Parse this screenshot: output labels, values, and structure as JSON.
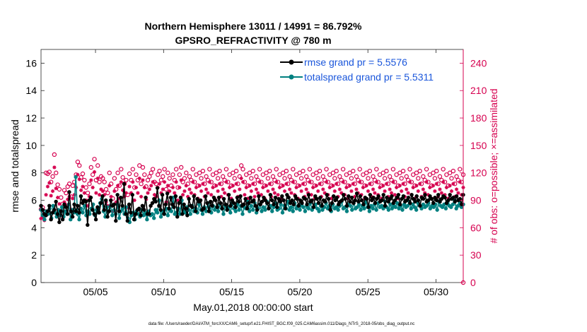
{
  "chart_data": {
    "type": "line",
    "title": "Northern Hemisphere 13011 / 14991 = 86.792%",
    "subtitle": "GPSRO_REFRACTIVITY @ 780 m",
    "xlabel": "May.01,2018 00:00:00 start",
    "ylabel_left": "rmse and totalspread",
    "ylabel_right": "# of obs: o=possible; ×=assimilated",
    "footer": "data file: /Users/raeder/DAI/ATM_forcXX/CAM6_setup/f.e21.FHIST_BGC.f09_025.CAM6assim.011/Diags_NTrS_2018-05/obs_diag_output.nc",
    "xlim": [
      1,
      32
    ],
    "ylim_left": [
      0,
      17
    ],
    "ylim_right": [
      0,
      255
    ],
    "x_ticks": [
      5,
      10,
      15,
      20,
      25,
      30
    ],
    "x_tick_labels": [
      "05/05",
      "05/10",
      "05/15",
      "05/20",
      "05/25",
      "05/30"
    ],
    "y_left_ticks": [
      "0",
      "2",
      "4",
      "6",
      "8",
      "10",
      "12",
      "14",
      "16"
    ],
    "y_right_ticks": [
      "0",
      "30",
      "60",
      "90",
      "120",
      "150",
      "180",
      "210",
      "240"
    ],
    "legend": [
      {
        "name": "rmse grand pr = 5.5576",
        "color": "#000000"
      },
      {
        "name": "totalspread grand pr = 5.5311",
        "color": "#008080"
      }
    ],
    "legend_position": "top-right",
    "colors": {
      "rmse": "#000000",
      "spread": "#008080",
      "obs": "#d6004f"
    },
    "series": [
      {
        "name": "rmse",
        "values": [
          5.6,
          5.3,
          5.0,
          4.9,
          5.2,
          5.6,
          4.6,
          5.1,
          5.3,
          5.9,
          5.0,
          4.4,
          5.2,
          4.6,
          5.7,
          5.5,
          5.0,
          6.6,
          5.2,
          4.8,
          5.7,
          5.2,
          5.6,
          5.1,
          6.3,
          5.8,
          6.0,
          5.9,
          4.2,
          6.0,
          6.2,
          5.3,
          5.0,
          4.6,
          5.5,
          5.1,
          5.8,
          6.3,
          5.3,
          6.0,
          4.8,
          5.2,
          6.0,
          5.6,
          5.7,
          4.5,
          6.4,
          5.2,
          6.2,
          5.6,
          7.2,
          5.0,
          4.5,
          5.7,
          5.1,
          6.4,
          4.6,
          5.0,
          5.3,
          5.4,
          4.9,
          5.6,
          5.3,
          6.2,
          5.0,
          5.0,
          5.6,
          5.8,
          6.1,
          5.9,
          6.9,
          5.6,
          5.3,
          6.4,
          5.0,
          5.7,
          6.5,
          5.4,
          6.2,
          5.7,
          5.5,
          6.3,
          4.8,
          5.8,
          6.2,
          5.0,
          5.7,
          5.4,
          4.9,
          6.1,
          5.6,
          5.5,
          6.3,
          5.2,
          6.1,
          5.9,
          6.0,
          5.3,
          5.4,
          6.3,
          5.8,
          5.2,
          5.9,
          5.6,
          6.2,
          6.0,
          5.5,
          6.2,
          5.8,
          5.4,
          6.1,
          5.7,
          5.3,
          6.4,
          5.6,
          6.0,
          5.8,
          5.5,
          6.2,
          5.9,
          6.3,
          5.6,
          5.7,
          6.1,
          5.4,
          5.8,
          6.2,
          5.9,
          6.0,
          5.6,
          5.3,
          6.3,
          5.7,
          5.9,
          6.2,
          6.0,
          5.8,
          5.4,
          6.4,
          6.0,
          5.7,
          6.2,
          5.5,
          6.1,
          5.9,
          6.3,
          6.0,
          5.4,
          6.4,
          6.2,
          5.8,
          6.0,
          5.7,
          6.3,
          6.1,
          5.6,
          6.0,
          5.8,
          6.2,
          6.1,
          5.7,
          6.4,
          5.9,
          6.0,
          5.5,
          6.3,
          6.1,
          5.8,
          6.2,
          5.6,
          6.0,
          5.9,
          6.4,
          6.1,
          5.3,
          5.8,
          6.3,
          6.0,
          6.2,
          5.7,
          5.9,
          6.0,
          6.4,
          6.1,
          5.6,
          6.3,
          5.9,
          6.2,
          5.8,
          6.0,
          6.5,
          5.9,
          6.3,
          6.0,
          5.7,
          6.2,
          6.1,
          5.5,
          6.4,
          6.0,
          6.2,
          5.8,
          6.1,
          6.3,
          5.9,
          6.0,
          6.4,
          5.6,
          6.2,
          5.9,
          6.1,
          6.3,
          5.8,
          6.0,
          6.2,
          6.4,
          5.7,
          6.1,
          6.3,
          5.9,
          6.0,
          6.2,
          5.8,
          6.4,
          6.1,
          5.9,
          6.3,
          6.0,
          5.6,
          6.2,
          6.1,
          6.4,
          5.9,
          6.0,
          6.3,
          6.1,
          5.8,
          6.2,
          6.0,
          6.4,
          5.9,
          6.1,
          6.3,
          6.2,
          5.8,
          6.0,
          6.4,
          6.1,
          6.2,
          5.9,
          6.3,
          6.0,
          6.1,
          5.7,
          6.4
        ]
      },
      {
        "name": "totalspread",
        "values": [
          5.3,
          4.9,
          4.6,
          5.2,
          5.0,
          5.4,
          4.7,
          5.6,
          5.1,
          4.8,
          5.3,
          4.9,
          5.5,
          4.8,
          5.2,
          5.0,
          5.7,
          4.6,
          5.3,
          5.1,
          7.7,
          5.0,
          4.6,
          5.4,
          5.1,
          5.6,
          4.9,
          5.2,
          5.0,
          5.4,
          5.7,
          4.9,
          5.3,
          5.1,
          5.8,
          6.1,
          5.2,
          4.8,
          5.5,
          5.2,
          5.6,
          4.9,
          5.3,
          5.0,
          5.7,
          4.7,
          5.2,
          5.4,
          5.0,
          5.5,
          4.7,
          4.4,
          4.9,
          5.1,
          4.6,
          5.2,
          5.0,
          4.8,
          5.3,
          4.9,
          5.1,
          4.6,
          5.2,
          4.9,
          5.0,
          4.7,
          5.3,
          5.1,
          6.0,
          4.8,
          5.2,
          5.0,
          5.4,
          4.9,
          5.3,
          5.2,
          6.2,
          5.0,
          5.1,
          5.4,
          5.0,
          6.0,
          5.2,
          5.1,
          5.5,
          5.3,
          5.0,
          5.6,
          5.2,
          5.4,
          5.1,
          5.7,
          5.3,
          5.0,
          5.5,
          5.2,
          5.8,
          5.4,
          5.1,
          5.6,
          5.3,
          5.5,
          5.2,
          5.7,
          5.4,
          5.0,
          5.6,
          5.3,
          5.5,
          5.1,
          5.8,
          5.4,
          5.2,
          5.7,
          5.3,
          5.6,
          5.0,
          5.5,
          5.4,
          5.9,
          5.2,
          5.6,
          5.3,
          5.8,
          5.1,
          5.4,
          5.7,
          5.2,
          5.5,
          5.3,
          5.9,
          5.4,
          5.6,
          5.2,
          5.5,
          5.8,
          5.3,
          5.4,
          5.7,
          5.1,
          5.6,
          5.4,
          5.9,
          5.3,
          5.5,
          5.2,
          5.8,
          5.4,
          5.6,
          5.3,
          5.7,
          5.5,
          5.2,
          5.6,
          5.4,
          5.8,
          5.3,
          5.5,
          5.7,
          5.4,
          5.2,
          5.6,
          5.3,
          5.5,
          5.8,
          5.4,
          5.6,
          5.2,
          5.7,
          5.4,
          5.5,
          5.3,
          5.6,
          5.9,
          5.4,
          5.5,
          5.2,
          5.7,
          5.6,
          5.3,
          5.8,
          5.4,
          5.5,
          5.7,
          5.3,
          5.6,
          5.4,
          5.9,
          5.5,
          5.2,
          5.6,
          5.4,
          5.7,
          5.3,
          5.8,
          5.5,
          5.6,
          5.4,
          5.9,
          5.5,
          5.3,
          5.7,
          5.4,
          5.6,
          5.5,
          5.8,
          5.4,
          5.6,
          5.3,
          5.7,
          5.5,
          5.6,
          5.9,
          5.4,
          5.7,
          5.5,
          5.3,
          5.8,
          5.6,
          5.4,
          5.7,
          5.5,
          5.6,
          5.8,
          5.4,
          5.6,
          5.5,
          5.7,
          5.3,
          5.9,
          5.6,
          5.5,
          5.7,
          5.4,
          5.8,
          5.6,
          5.5,
          5.7,
          6.0,
          5.4,
          5.6,
          5.8,
          5.5,
          5.7
        ]
      },
      {
        "name": "obs possible",
        "values": [
          80,
          82,
          78,
          120,
          119,
          121,
          110,
          116,
          140,
          120,
          107,
          102,
          93,
          86,
          101,
          98,
          105,
          108,
          94,
          106,
          110,
          118,
          132,
          128,
          115,
          119,
          112,
          104,
          98,
          108,
          126,
          118,
          135,
          112,
          128,
          110,
          116,
          114,
          110,
          102,
          98,
          120,
          108,
          92,
          114,
          102,
          120,
          106,
          124,
          115,
          108,
          112,
          96,
          119,
          112,
          124,
          104,
          118,
          112,
          128,
          108,
          126,
          118,
          105,
          112,
          116,
          120,
          124,
          110,
          108,
          118,
          122,
          112,
          116,
          124,
          102,
          120,
          114,
          106,
          118,
          112,
          124,
          104,
          118,
          126,
          110,
          114,
          120,
          108,
          116,
          112,
          124,
          110,
          118,
          106,
          120,
          114,
          122,
          108,
          116,
          112,
          124,
          110,
          118,
          106,
          120,
          114,
          122,
          108,
          116,
          112,
          124,
          110,
          118,
          106,
          120,
          114,
          122,
          108,
          116,
          128,
          124,
          110,
          118,
          106,
          120,
          114,
          122,
          108,
          116,
          112,
          124,
          110,
          118,
          106,
          120,
          114,
          122,
          108,
          116,
          112,
          124,
          110,
          118,
          106,
          120,
          114,
          122,
          108,
          116,
          112,
          124,
          110,
          118,
          106,
          120,
          114,
          122,
          108,
          116,
          112,
          124,
          110,
          118,
          106,
          120,
          114,
          122,
          108,
          116,
          112,
          124,
          110,
          118,
          106,
          120,
          114,
          122,
          108,
          116,
          112,
          124,
          110,
          118,
          106,
          120,
          114,
          122,
          108,
          116,
          112,
          124,
          110,
          118,
          106,
          120,
          114,
          122,
          108,
          116,
          112,
          124,
          110,
          118,
          106,
          120,
          114,
          122,
          108,
          116,
          112,
          124,
          110,
          118,
          106,
          120,
          114,
          122,
          108,
          116,
          112,
          124,
          110,
          118,
          106,
          120,
          114,
          122,
          108,
          116,
          112,
          124,
          110,
          118,
          106,
          120,
          114,
          122,
          108,
          116,
          112,
          124,
          110,
          118,
          106,
          120,
          114,
          122,
          108,
          116,
          112,
          124,
          110,
          118
        ]
      },
      {
        "name": "obs assimilated",
        "values": [
          70,
          72,
          68,
          96,
          105,
          109,
          95,
          100,
          126,
          103,
          93,
          86,
          79,
          72,
          88,
          85,
          91,
          94,
          80,
          92,
          96,
          104,
          118,
          113,
          101,
          105,
          98,
          90,
          84,
          94,
          112,
          104,
          121,
          98,
          114,
          96,
          102,
          100,
          96,
          88,
          84,
          106,
          94,
          78,
          100,
          88,
          106,
          92,
          110,
          101,
          94,
          98,
          82,
          105,
          98,
          110,
          90,
          104,
          98,
          114,
          94,
          112,
          104,
          91,
          98,
          102,
          106,
          110,
          96,
          94,
          104,
          108,
          98,
          102,
          110,
          88,
          106,
          100,
          92,
          104,
          98,
          110,
          90,
          104,
          112,
          96,
          100,
          106,
          94,
          102,
          98,
          110,
          96,
          104,
          92,
          106,
          100,
          108,
          94,
          102,
          98,
          110,
          96,
          104,
          92,
          106,
          100,
          108,
          94,
          102,
          98,
          110,
          96,
          104,
          92,
          106,
          100,
          108,
          94,
          102,
          114,
          110,
          96,
          104,
          92,
          106,
          100,
          108,
          94,
          102,
          98,
          110,
          96,
          104,
          92,
          106,
          100,
          108,
          94,
          102,
          98,
          110,
          96,
          104,
          92,
          106,
          100,
          108,
          94,
          102,
          98,
          110,
          96,
          104,
          92,
          106,
          100,
          108,
          94,
          102,
          98,
          110,
          96,
          104,
          92,
          106,
          100,
          108,
          94,
          102,
          98,
          110,
          96,
          104,
          92,
          106,
          100,
          108,
          94,
          102,
          98,
          110,
          96,
          104,
          92,
          106,
          100,
          108,
          94,
          102,
          98,
          110,
          96,
          104,
          92,
          106,
          100,
          108,
          94,
          102,
          98,
          110,
          96,
          104,
          92,
          106,
          100,
          108,
          94,
          102,
          98,
          110,
          96,
          104,
          92,
          106,
          100,
          108,
          94,
          102,
          98,
          110,
          96,
          104,
          92,
          106,
          100,
          108,
          94,
          102,
          98,
          110,
          96,
          104,
          92,
          106,
          100,
          108,
          94,
          102,
          98,
          110,
          96,
          104,
          92,
          106,
          100,
          108,
          94,
          102,
          98,
          110,
          96,
          104
        ]
      }
    ]
  }
}
